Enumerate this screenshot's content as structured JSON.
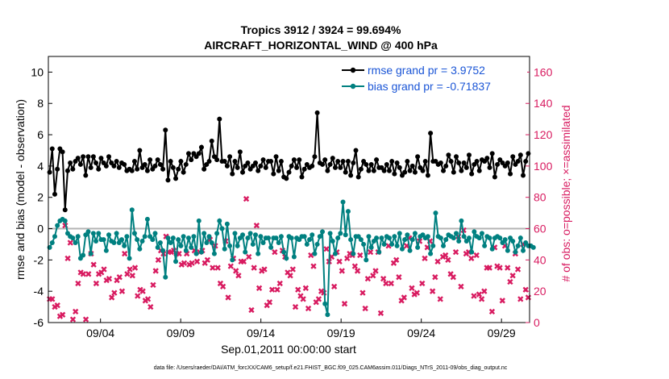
{
  "chart_data": {
    "type": "line",
    "title_line1": "Tropics 3912 / 3924 = 99.694%",
    "title_line2": "AIRCRAFT_HORIZONTAL_WIND @ 400 hPa",
    "ylabel_left": "rmse and bias (model - observation)",
    "ylabel_right": "# of obs: o=possible; ×=assimilated",
    "xlabel": "Sep.01,2011 00:00:00 start",
    "footnote": "data file: /Users/raeder/DAI/ATM_forcXX/CAM6_setup/f.e21.FHIST_BGC.f09_025.CAM6assim.011/Diags_NTrS_2011-09/obs_diag_output.nc",
    "left_ylim": [
      -6,
      11
    ],
    "left_yticks": [
      "10",
      "8",
      "6",
      "4",
      "2",
      "0",
      "-2",
      "-4",
      "-6"
    ],
    "right_ylim": [
      0,
      170
    ],
    "right_yticks": [
      "160",
      "140",
      "120",
      "100",
      "80",
      "60",
      "40",
      "20",
      "0"
    ],
    "xlim": [
      1.0,
      31.0
    ],
    "xtick_labels": [
      "09/04",
      "09/09",
      "09/14",
      "09/19",
      "09/24",
      "09/29"
    ],
    "xtick_days": [
      4.25,
      9.25,
      14.25,
      19.25,
      24.25,
      29.25
    ],
    "zero_line": 0,
    "colors": {
      "rmse": "#000000",
      "bias": "#008080",
      "obs": "#d81b60",
      "right_axis": "#d81b60",
      "legend_text": "#1a55d6",
      "zero": "#b3b3b3"
    },
    "series": [
      {
        "name": "rmse grand pr = 3.9752",
        "axis": "left",
        "values": [
          3.6,
          5.1,
          2.2,
          3.8,
          5.1,
          4.9,
          1.2,
          3.7,
          4.2,
          3.8,
          4.3,
          4.5,
          4.1,
          4.6,
          3.4,
          4.6,
          3.9,
          4.6,
          4.2,
          3.8,
          4.5,
          4.2,
          4.0,
          4.6,
          4.2,
          4.0,
          4.3,
          3.9,
          4.2,
          4.1,
          3.7,
          3.8,
          3.7,
          4.3,
          3.8,
          5.0,
          3.9,
          4.1,
          3.7,
          4.4,
          3.8,
          4.0,
          4.4,
          4.1,
          3.8,
          6.3,
          3.1,
          4.3,
          3.9,
          3.2,
          3.8,
          4.3,
          3.6,
          4.1,
          4.8,
          4.4,
          4.8,
          4.6,
          4.8,
          5.2,
          3.8,
          4.1,
          4.3,
          5.6,
          4.6,
          4.4,
          7.0,
          4.3,
          4.3,
          4.0,
          4.6,
          3.5,
          4.3,
          3.9,
          4.9,
          3.6,
          4.0,
          4.2,
          3.8,
          4.0,
          4.2,
          3.7,
          4.0,
          4.4,
          3.9,
          4.3,
          4.3,
          3.5,
          4.6,
          3.7,
          4.3,
          3.3,
          3.2,
          3.6,
          4.0,
          4.4,
          3.9,
          4.4,
          3.3,
          3.8,
          4.1,
          3.9,
          4.0,
          4.6,
          7.4,
          4.2,
          4.1,
          4.4,
          3.7,
          4.1,
          4.5,
          3.9,
          4.3,
          3.9,
          4.3,
          3.6,
          4.3,
          3.4,
          4.2,
          5.0,
          3.3,
          3.8,
          4.3,
          4.1,
          3.7,
          4.1,
          3.7,
          4.4,
          3.9,
          3.9,
          3.7,
          4.1,
          3.7,
          4.3,
          3.5,
          4.2,
          3.9,
          3.4,
          3.6,
          4.3,
          3.7,
          4.0,
          3.6,
          4.6,
          3.9,
          3.7,
          4.3,
          3.4,
          6.1,
          4.3,
          4.3,
          4.1,
          4.2,
          3.7,
          4.0,
          4.7,
          4.3,
          3.6,
          4.6,
          4.2,
          3.7,
          4.2,
          3.9,
          4.7,
          3.5,
          4.1,
          4.3,
          3.7,
          4.4,
          4.3,
          4.5,
          3.9,
          4.8,
          3.3,
          4.1,
          4.4,
          4.2,
          4.0,
          4.2,
          3.5,
          4.6,
          4.1,
          4.3,
          4.7,
          3.4,
          4.3,
          4.8
        ]
      },
      {
        "name": "bias grand pr = -0.71837",
        "axis": "left",
        "values": [
          -1.2,
          -0.9,
          -0.5,
          0.2,
          0.5,
          0.6,
          0.5,
          -0.3,
          -0.5,
          -0.6,
          -0.9,
          -0.5,
          -1.9,
          -1.7,
          -0.4,
          -0.2,
          -1.6,
          -0.3,
          -0.8,
          -0.3,
          -0.7,
          -0.7,
          -1.4,
          -0.4,
          -0.8,
          -0.9,
          -0.3,
          -0.9,
          -0.7,
          -1.1,
          -0.5,
          -1.9,
          1.2,
          -0.3,
          -0.7,
          -1.3,
          -0.8,
          -0.5,
          0.6,
          -0.5,
          -0.7,
          -0.3,
          -1.2,
          -0.9,
          -1.4,
          -3.1,
          -0.6,
          -0.9,
          -0.6,
          -2.1,
          -0.7,
          -1.1,
          -0.5,
          -1.4,
          -0.6,
          -1.2,
          -0.5,
          -1.6,
          0.5,
          -1.5,
          -0.3,
          -0.9,
          -0.5,
          -0.9,
          -1.6,
          -0.3,
          0.5,
          0.0,
          -1.3,
          0.3,
          -1.1,
          -2.0,
          -0.3,
          -1.1,
          -0.6,
          -0.4,
          -1.5,
          -0.6,
          -0.3,
          -1.0,
          -0.4,
          -1.6,
          -0.5,
          -0.9,
          -0.6,
          -0.6,
          -1.2,
          -0.6,
          -0.6,
          -0.9,
          -0.5,
          -1.5,
          -1.9,
          -0.5,
          -0.6,
          -1.8,
          -0.6,
          -0.7,
          -0.5,
          -0.5,
          -1.0,
          -0.7,
          -0.4,
          -1.6,
          -1.0,
          -0.5,
          -0.2,
          -4.8,
          -5.5,
          -0.3,
          -0.8,
          -1.6,
          -0.6,
          -0.3,
          1.7,
          -0.4,
          1.1,
          -0.7,
          -1.6,
          -0.5,
          -0.5,
          -0.7,
          -1.0,
          -2.0,
          -0.5,
          -1.2,
          -0.8,
          -0.6,
          -1.5,
          -0.6,
          -1.0,
          -0.5,
          -0.6,
          -1.0,
          -0.5,
          -1.1,
          -0.3,
          -1.3,
          -0.7,
          -0.4,
          -1.4,
          -0.7,
          -0.3,
          -1.2,
          -0.5,
          -0.4,
          -0.6,
          -0.5,
          -1.6,
          -1.1,
          1.0,
          -0.5,
          -0.6,
          -1.1,
          -0.7,
          -0.4,
          -0.5,
          -0.6,
          -0.3,
          -0.8,
          0.5,
          -0.5,
          -0.8,
          -0.6,
          -1.5,
          -0.2,
          -0.5,
          -0.6,
          -0.3,
          -1.1,
          -0.5,
          -0.6,
          -1.3,
          -0.6,
          -0.5,
          -0.6,
          -0.9,
          -0.7,
          -1.4,
          -0.6,
          -0.8,
          -1.5,
          -1.1,
          -0.6,
          -1.4,
          -0.9,
          -1.1,
          -1.1,
          -1.2
        ]
      },
      {
        "name": "obs assimilated",
        "axis": "right",
        "marker": "x",
        "values": [
          15,
          15,
          10,
          11,
          4,
          5,
          62,
          41,
          51,
          2,
          7,
          25,
          32,
          31,
          2,
          31,
          44,
          37,
          25,
          31,
          32,
          34,
          27,
          28,
          16,
          19,
          27,
          29,
          20,
          44,
          31,
          34,
          30,
          35,
          17,
          21,
          20,
          14,
          15,
          10,
          24,
          33,
          40,
          46,
          44,
          55,
          45,
          45,
          46,
          44,
          44,
          37,
          38,
          44,
          37,
          38,
          46,
          39,
          45,
          46,
          38,
          40,
          53,
          35,
          49,
          35,
          25,
          23,
          52,
          16,
          36,
          41,
          33,
          30,
          39,
          39,
          79,
          42,
          8,
          35,
          62,
          22,
          33,
          34,
          11,
          13,
          21,
          45,
          21,
          25,
          46,
          42,
          32,
          30,
          34,
          10,
          21,
          17,
          15,
          22,
          9,
          43,
          36,
          13,
          15,
          20,
          19,
          47,
          39,
          42,
          23,
          45,
          39,
          33,
          12,
          41,
          44,
          43,
          36,
          33,
          43,
          19,
          9,
          28,
          45,
          30,
          33,
          45,
          6,
          28,
          25,
          49,
          25,
          38,
          40,
          29,
          14,
          16,
          49,
          54,
          22,
          18,
          19,
          52,
          25,
          41,
          48,
          52,
          20,
          29,
          39,
          15,
          42,
          43,
          40,
          31,
          29,
          45,
          55,
          23,
          59,
          44,
          45,
          41,
          17,
          43,
          18,
          15,
          20,
          35,
          35,
          7,
          48,
          36,
          35,
          14,
          49,
          35,
          26,
          30,
          44,
          34,
          15,
          50,
          21,
          16
        ]
      },
      {
        "name": "obs possible",
        "axis": "right",
        "marker": "o",
        "values": []
      }
    ]
  }
}
